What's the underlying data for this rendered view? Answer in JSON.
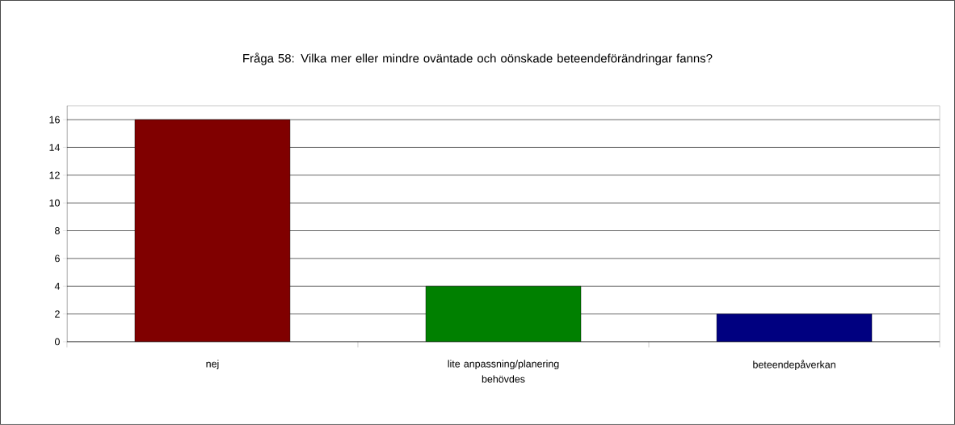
{
  "chart_data": {
    "type": "bar",
    "title": "Fråga 58: Vilka mer eller mindre oväntade och oönskade beteendeförändringar fanns?",
    "categories": [
      "nej",
      "lite anpassning/planering behövdes",
      "beteendepåverkan"
    ],
    "values": [
      16,
      4,
      2
    ],
    "colors": [
      "#800000",
      "#008000",
      "#000080"
    ],
    "ylim": [
      0,
      17
    ],
    "yticks": [
      0,
      2,
      4,
      6,
      8,
      10,
      12,
      14,
      16
    ],
    "grid": "y"
  }
}
